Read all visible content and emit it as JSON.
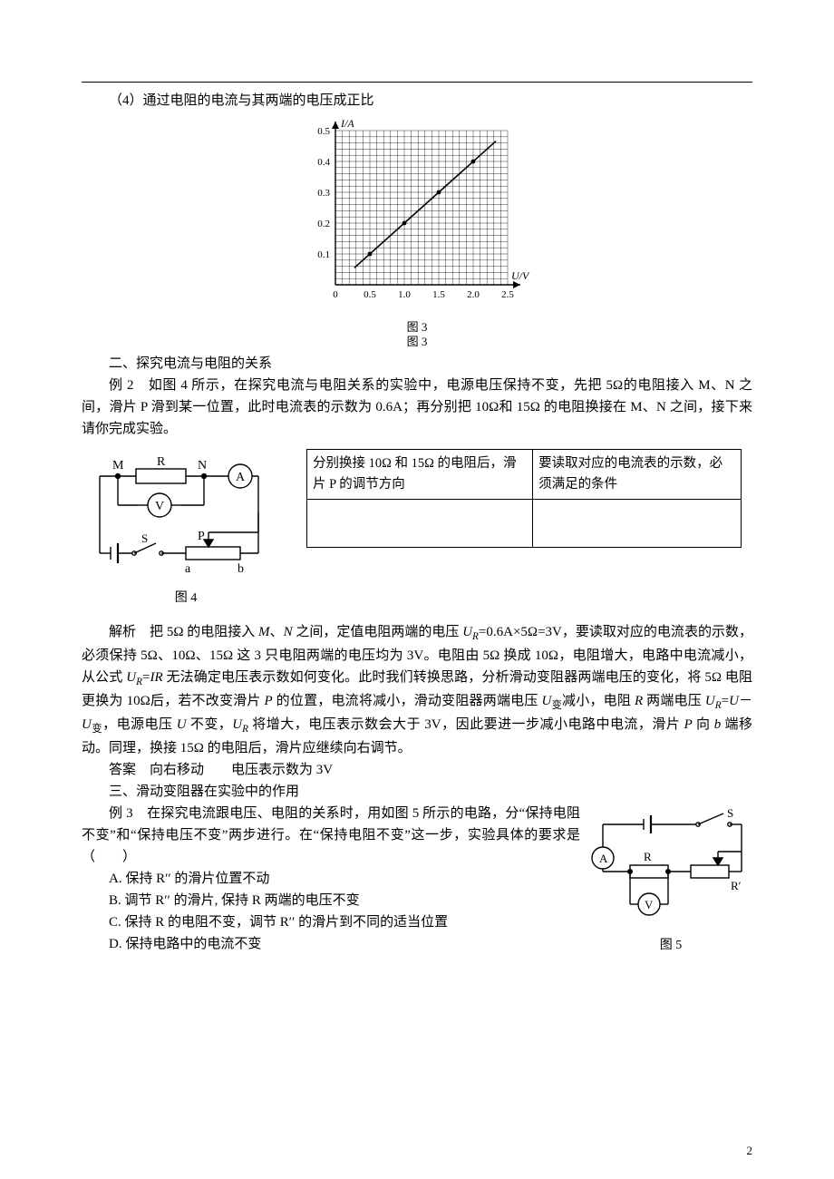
{
  "header_line4": "（4）通过电阻的电流与其两端的电压成正比",
  "chart": {
    "type": "line",
    "x_label": "U/V",
    "y_label": "I/A",
    "x_ticks": [
      "0",
      "0.5",
      "1.0",
      "1.5",
      "2.0",
      "2.5"
    ],
    "y_ticks": [
      "0.1",
      "0.2",
      "0.3",
      "0.4",
      "0.5"
    ],
    "xlim": [
      0,
      2.5
    ],
    "ylim": [
      0,
      0.5
    ],
    "grid_divisions_x": 25,
    "grid_divisions_y": 25,
    "major_x_step": 5,
    "major_y_step": 5,
    "line_points_uv": [
      [
        0.5,
        0.1
      ],
      [
        1.0,
        0.2
      ],
      [
        1.5,
        0.3
      ],
      [
        2.0,
        0.4
      ]
    ],
    "line_color": "#000000",
    "grid_color": "#000000",
    "background_color": "#ffffff",
    "caption_l1": "图  3",
    "caption_l2": "图  3"
  },
  "section2_title": "二、探究电流与电阻的关系",
  "ex2_label": "例 2",
  "ex2_text": "如图 4 所示，在探究电流与电阻关系的实验中，电源电压保持不变，先把 5Ω的电阻接入 M、N 之间，滑片 P 滑到某一位置，此时电流表的示数为 0.6A；再分别把 10Ω和 15Ω 的电阻换接在 M、N 之间，接下来请你完成实验。",
  "fig4": {
    "labels": {
      "M": "M",
      "R": "R",
      "N": "N",
      "A": "A",
      "V": "V",
      "S": "S",
      "P": "P",
      "a": "a",
      "b": "b"
    },
    "caption": "图  4"
  },
  "table": {
    "col1_header": "分别换接 10Ω 和 15Ω 的电阻后，滑片 P 的调节方向",
    "col2_header": "要读取对应的电流表的示数，必须满足的条件"
  },
  "analysis_label": "解析",
  "analysis_text_html": "把 5Ω 的电阻接入 <span class='letter'>M</span>、<span class='letter'>N</span> 之间，定值电阻两端的电压 <span class='letter'>U<span class='sub'>R</span></span>=0.6A×5Ω=3V，要读取对应的电流表的示数，必须保持 5Ω、10Ω、15Ω 这 3 只电阻两端的电压均为 3V。电阻由 5Ω 换成 10Ω，电阻增大，电路中电流减小，从公式 <span class='letter'>U<span class='sub'>R</span></span>=<span class='letter'>IR</span> 无法确定电压表示数如何变化。此时我们转换思路，分析滑动变阻器两端电压的变化，将 5Ω 电阻更换为 10Ω后，若不改变滑片 <span class='letter'>P</span> 的位置，电流将减小，滑动变阻器两端电压 <span class='letter'>U</span><span class='sub'>变</span>减小，电阻 <span class='letter'>R</span> 两端电压 <span class='letter'>U<span class='sub'>R</span></span>=<span class='letter'>U</span>－<span class='letter'>U</span><span class='sub'>变</span>，电源电压 <span class='letter'>U</span> 不变，<span class='letter'>U<span class='sub'>R</span></span> 将增大，电压表示数会大于 3V，因此要进一步减小电路中电流，滑片 <span class='letter'>P</span> 向 <span class='letter'>b</span> 端移动。同理，换接 15Ω 的电阻后，滑片应继续向右调节。",
  "answer_label": "答案",
  "answer_text": "向右移动　　电压表示数为 3V",
  "section3_title": "三、滑动变阻器在实验中的作用",
  "ex3_label": "例 3",
  "ex3_text": "在探究电流跟电压、电阻的关系时，用如图 5 所示的电路，分“保持电阻不变”和“保持电压不变”两步进行。在“保持电阻不变”这一步，实验具体的要求是（　　）",
  "options": {
    "A": "A. 保持 R′′ 的滑片位置不动",
    "B": "B. 调节 R′′ 的滑片, 保持 R 两端的电压不变",
    "C": "C. 保持 R 的电阻不变，调节 R′′ 的滑片到不同的适当位置",
    "D": "D. 保持电路中的电流不变"
  },
  "fig5": {
    "labels": {
      "S": "S",
      "A": "A",
      "R": "R",
      "Rp": "R′",
      "V": "V"
    },
    "caption": "图  5"
  },
  "page_number": "2"
}
